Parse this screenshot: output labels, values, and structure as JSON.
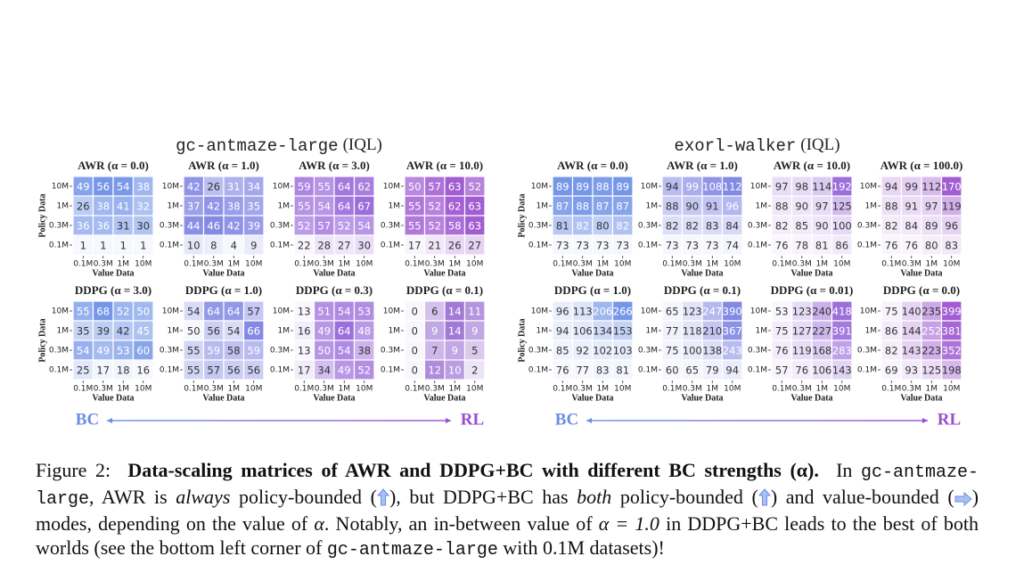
{
  "figure": {
    "axes": {
      "rows": [
        "10M",
        "1M",
        "0.3M",
        "0.1M"
      ],
      "cols": [
        "0.1M",
        "0.3M",
        "1M",
        "10M"
      ],
      "xlabel": "Value Data",
      "ylabel": "Policy Data"
    },
    "groups": [
      {
        "name": "gc-antmaze-large",
        "method": "(IQL)",
        "bc": "BC",
        "rl": "RL",
        "panels": [
          {
            "title": "AWR (α = 0.0)",
            "color": "#6a8ee6",
            "values": [
              [
                49,
                56,
                54,
                38
              ],
              [
                26,
                38,
                41,
                32
              ],
              [
                36,
                36,
                31,
                30
              ],
              [
                1,
                1,
                1,
                1
              ]
            ]
          },
          {
            "title": "AWR (α = 1.0)",
            "color": "#7a80e2",
            "values": [
              [
                42,
                26,
                31,
                34
              ],
              [
                37,
                42,
                38,
                35
              ],
              [
                44,
                46,
                42,
                39
              ],
              [
                10,
                8,
                4,
                9
              ]
            ]
          },
          {
            "title": "AWR (α = 3.0)",
            "color": "#9563d8",
            "values": [
              [
                59,
                55,
                64,
                62
              ],
              [
                55,
                54,
                64,
                67
              ],
              [
                52,
                57,
                52,
                54
              ],
              [
                22,
                28,
                27,
                30
              ]
            ]
          },
          {
            "title": "AWR (α = 10.0)",
            "color": "#9a4fcf",
            "values": [
              [
                50,
                57,
                63,
                52
              ],
              [
                55,
                52,
                62,
                63
              ],
              [
                55,
                52,
                58,
                63
              ],
              [
                17,
                21,
                26,
                27
              ]
            ]
          },
          {
            "title": "DDPG (α = 3.0)",
            "color": "#6a8ee6",
            "values": [
              [
                55,
                68,
                52,
                50
              ],
              [
                35,
                39,
                42,
                45
              ],
              [
                54,
                49,
                53,
                60
              ],
              [
                25,
                17,
                18,
                16
              ]
            ]
          },
          {
            "title": "DDPG (α = 1.0)",
            "color": "#7a80e2",
            "values": [
              [
                54,
                64,
                64,
                57
              ],
              [
                50,
                56,
                54,
                66
              ],
              [
                55,
                59,
                58,
                59
              ],
              [
                55,
                57,
                56,
                56
              ]
            ]
          },
          {
            "title": "DDPG (α = 0.3)",
            "color": "#9563d8",
            "values": [
              [
                13,
                51,
                54,
                53
              ],
              [
                16,
                49,
                64,
                48
              ],
              [
                13,
                50,
                54,
                38
              ],
              [
                17,
                34,
                49,
                52
              ]
            ]
          },
          {
            "title": "DDPG (α = 0.1)",
            "color": "#9a6fd2",
            "values": [
              [
                0,
                6,
                14,
                11
              ],
              [
                0,
                9,
                14,
                9
              ],
              [
                0,
                7,
                9,
                5
              ],
              [
                0,
                12,
                10,
                2
              ]
            ]
          }
        ]
      },
      {
        "name": "exorl-walker",
        "method": "(IQL)",
        "bc": "BC",
        "rl": "RL",
        "panels": [
          {
            "title": "AWR (α = 0.0)",
            "color": "#6a8ee6",
            "values": [
              [
                89,
                89,
                88,
                89
              ],
              [
                87,
                88,
                87,
                87
              ],
              [
                81,
                82,
                80,
                82
              ],
              [
                73,
                73,
                73,
                73
              ]
            ]
          },
          {
            "title": "AWR (α = 1.0)",
            "color": "#7a80e2",
            "values": [
              [
                94,
                99,
                108,
                112
              ],
              [
                88,
                90,
                91,
                96
              ],
              [
                82,
                82,
                83,
                84
              ],
              [
                73,
                73,
                73,
                74
              ]
            ]
          },
          {
            "title": "AWR (α = 10.0)",
            "color": "#9563d8",
            "values": [
              [
                97,
                98,
                114,
                192
              ],
              [
                88,
                90,
                97,
                125
              ],
              [
                82,
                85,
                90,
                100
              ],
              [
                76,
                78,
                81,
                86
              ]
            ]
          },
          {
            "title": "AWR (α = 100.0)",
            "color": "#9a4fcf",
            "values": [
              [
                94,
                99,
                112,
                170
              ],
              [
                88,
                91,
                97,
                119
              ],
              [
                82,
                84,
                89,
                96
              ],
              [
                76,
                76,
                80,
                83
              ]
            ]
          },
          {
            "title": "DDPG (α = 1.0)",
            "color": "#6a8ee6",
            "values": [
              [
                96,
                113,
                206,
                266
              ],
              [
                94,
                106,
                134,
                153
              ],
              [
                85,
                92,
                102,
                103
              ],
              [
                76,
                77,
                83,
                81
              ]
            ]
          },
          {
            "title": "DDPG (α = 0.1)",
            "color": "#7a80e2",
            "values": [
              [
                65,
                123,
                247,
                390
              ],
              [
                77,
                118,
                210,
                367
              ],
              [
                75,
                100,
                138,
                243
              ],
              [
                60,
                65,
                79,
                94
              ]
            ]
          },
          {
            "title": "DDPG (α = 0.01)",
            "color": "#9563d8",
            "values": [
              [
                53,
                123,
                240,
                418
              ],
              [
                75,
                127,
                227,
                391
              ],
              [
                76,
                119,
                168,
                283
              ],
              [
                57,
                76,
                106,
                143
              ]
            ]
          },
          {
            "title": "DDPG (α = 0.0)",
            "color": "#9a4fcf",
            "values": [
              [
                75,
                140,
                235,
                399
              ],
              [
                86,
                144,
                252,
                381
              ],
              [
                82,
                143,
                223,
                352
              ],
              [
                69,
                93,
                125,
                198
              ]
            ]
          }
        ]
      }
    ]
  },
  "caption": {
    "label": "Figure 2:",
    "bold": "Data-scaling matrices of AWR and DDPG+BC with different BC strengths (α).",
    "segments": [
      "In",
      "gc-antmaze-large",
      ", AWR is ",
      "always",
      " policy-bounded (",
      "), but DDPG+BC has ",
      "both",
      " policy-bounded (",
      ") and value-bounded (",
      ") modes, depending on the value of ",
      "α",
      ". Notably, an in-between value of ",
      "α = 1.0",
      " in DDPG+BC leads to the best of both worlds (see the bottom left corner of ",
      "gc-antmaze-large",
      " with 0.1M datasets)!"
    ]
  }
}
